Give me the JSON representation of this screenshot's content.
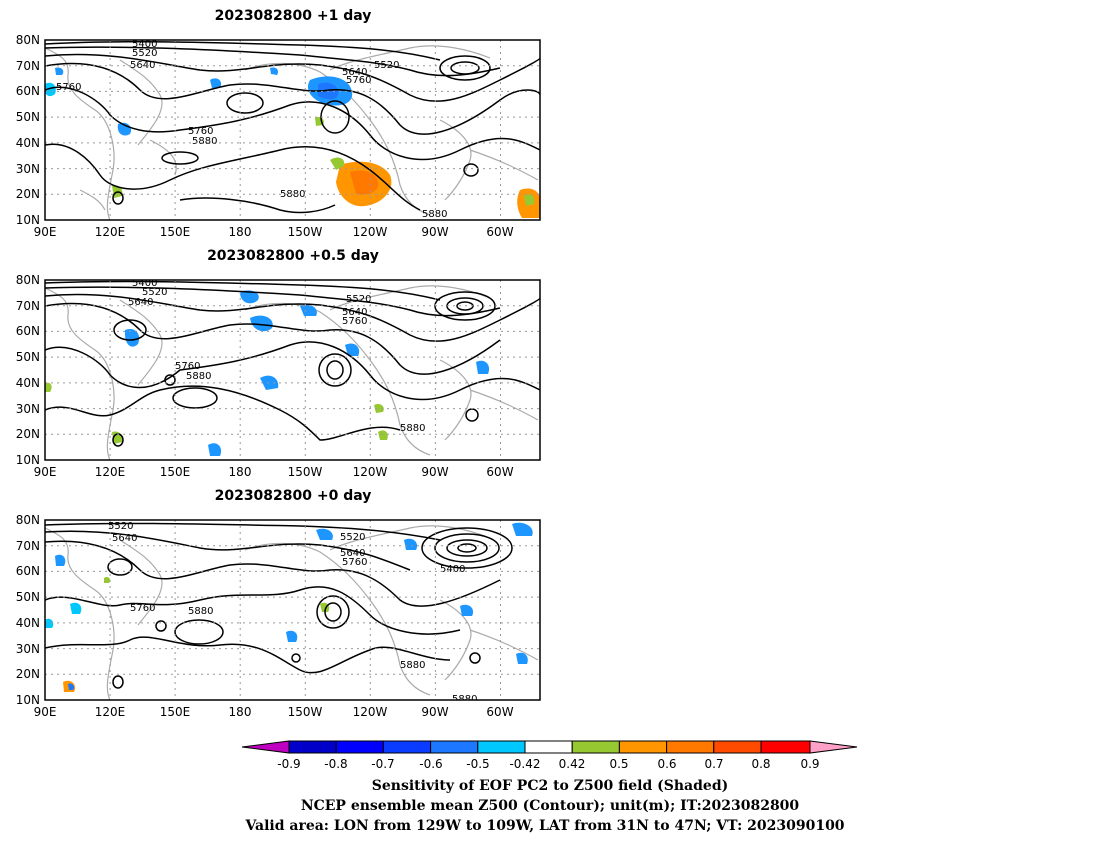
{
  "panels": [
    {
      "title": "2023082800  +1 day",
      "contour_labels": [
        "5400",
        "5520",
        "5640",
        "5760",
        "5760",
        "5880",
        "5520",
        "5640",
        "5760",
        "5880",
        "5880"
      ]
    },
    {
      "title": "2023082800  +0.5 day",
      "contour_labels": [
        "5400",
        "5520",
        "5640",
        "5760",
        "5880",
        "5520",
        "5640",
        "5760",
        "5880"
      ]
    },
    {
      "title": "2023082800  +0 day",
      "contour_labels": [
        "5520",
        "5640",
        "5760",
        "5880",
        "5520",
        "5640",
        "5760",
        "5400",
        "5880",
        "5880"
      ]
    }
  ],
  "axes": {
    "lat_labels": [
      "80N",
      "70N",
      "60N",
      "50N",
      "40N",
      "30N",
      "20N",
      "10N"
    ],
    "lon_labels": [
      "90E",
      "120E",
      "150E",
      "180",
      "150W",
      "120W",
      "90W",
      "60W"
    ]
  },
  "colorbar": {
    "tick_labels": [
      "-0.9",
      "-0.8",
      "-0.7",
      "-0.6",
      "-0.5",
      "-0.42",
      "0.42",
      "0.5",
      "0.6",
      "0.7",
      "0.8",
      "0.9"
    ],
    "colors": [
      "#c000c0",
      "#0000c8",
      "#0000ff",
      "#0a3cff",
      "#1e78ff",
      "#1e96ff",
      "#00c8ff",
      "#ffffff",
      "#96c832",
      "#ff9600",
      "#ff7800",
      "#ff4b00",
      "#ff0000",
      "#ffa0c8"
    ]
  },
  "caption": {
    "line1": "Sensitivity of EOF PC2 to Z500 field (Shaded)",
    "line2": "NCEP ensemble mean Z500 (Contour); unit(m); IT:2023082800",
    "line3": "Valid area: LON from 129W to 109W, LAT from 31N to 47N; VT: 2023090100"
  }
}
